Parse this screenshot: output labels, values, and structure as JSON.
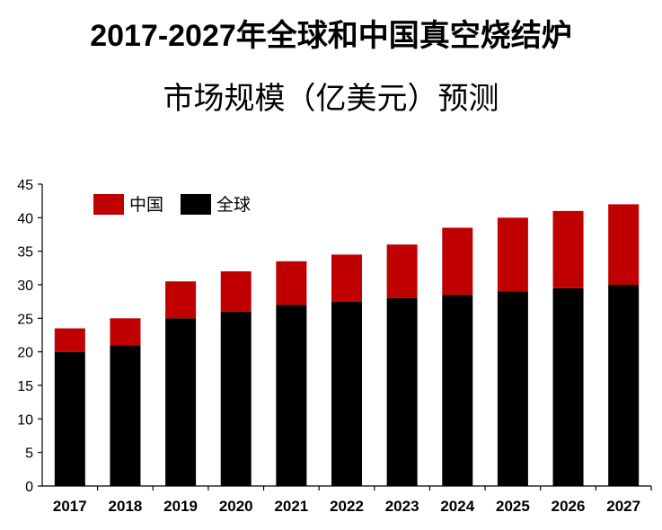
{
  "title": {
    "line1": "2017-2027年全球和中国真空烧结炉",
    "line2": "市场规模（亿美元）预测"
  },
  "colors": {
    "china": "#c00000",
    "global": "#000000"
  },
  "chart_data": {
    "type": "bar",
    "stacked": true,
    "title": "2017-2027年全球和中国真空烧结炉市场规模（亿美元）预测",
    "xlabel": "",
    "ylabel": "",
    "ylim": [
      0,
      45
    ],
    "yticks": [
      0,
      5,
      10,
      15,
      20,
      25,
      30,
      35,
      40,
      45
    ],
    "grid": false,
    "legend": "top-left",
    "categories": [
      "2017",
      "2018",
      "2019",
      "2020",
      "2021",
      "2022",
      "2023",
      "2024",
      "2025",
      "2026",
      "2027"
    ],
    "series": [
      {
        "name": "全球",
        "color": "#000000",
        "values": [
          20,
          21,
          25,
          26,
          27,
          27.5,
          28,
          28.5,
          29,
          29.5,
          30
        ]
      },
      {
        "name": "中国",
        "color": "#c00000",
        "values": [
          3.5,
          4,
          5.5,
          6,
          6.5,
          7,
          8,
          10,
          11,
          11.5,
          12
        ]
      }
    ]
  }
}
